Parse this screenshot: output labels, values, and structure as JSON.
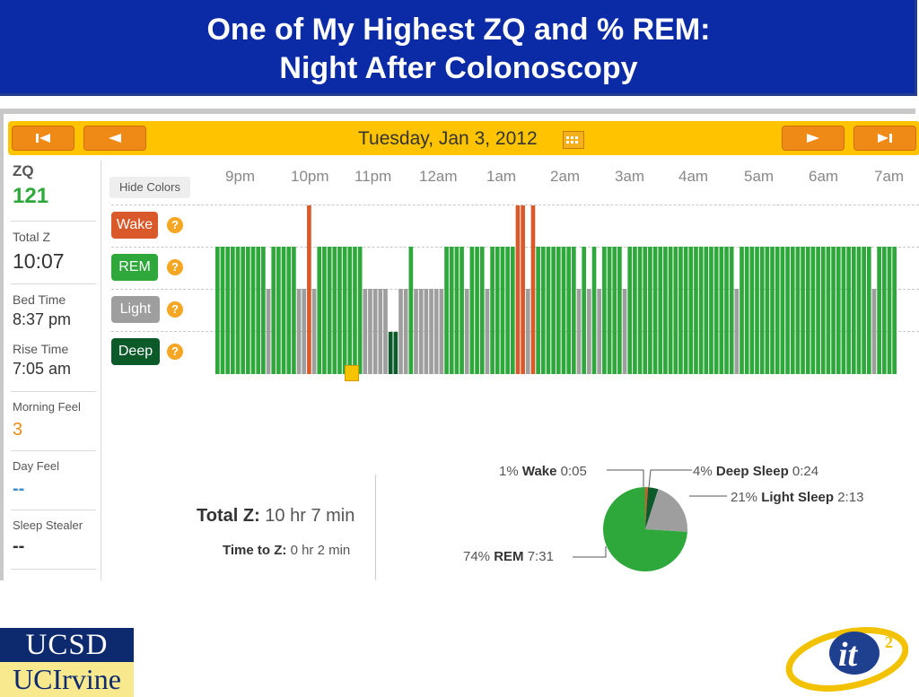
{
  "slide": {
    "title_line1": "One of My Highest ZQ and % REM:",
    "title_line2": "Night After Colonoscopy"
  },
  "nav": {
    "date": "Tuesday, Jan 3, 2012",
    "buttons": [
      "first",
      "prev",
      "next",
      "last"
    ]
  },
  "sidebar": {
    "items": [
      {
        "label": "ZQ",
        "value": "121"
      },
      {
        "label": "Total Z",
        "value": "10:07"
      },
      {
        "label": "Bed Time",
        "value": "8:37 pm"
      },
      {
        "label": "Rise Time",
        "value": "7:05 am"
      },
      {
        "label": "Morning Feel",
        "value": "3"
      },
      {
        "label": "Day Feel",
        "value": "--"
      },
      {
        "label": "Sleep Stealer",
        "value": "--"
      }
    ]
  },
  "graph": {
    "hide_colors_label": "Hide Colors",
    "hours": [
      "9pm",
      "10pm",
      "11pm",
      "12am",
      "1am",
      "2am",
      "3am",
      "4am",
      "5am",
      "6am",
      "7am"
    ],
    "legend": [
      {
        "label": "Wake",
        "color": "#d9592b"
      },
      {
        "label": "REM",
        "color": "#2ea83a"
      },
      {
        "label": "Light",
        "color": "#9e9e9e"
      },
      {
        "label": "Deep",
        "color": "#0c5a2a"
      }
    ]
  },
  "summary": {
    "total_label": "Total Z:",
    "total_value": "10 hr 7 min",
    "ttz_label": "Time to Z:",
    "ttz_value": "0 hr 2 min"
  },
  "pie": {
    "slices": [
      {
        "pct": "1%",
        "name": "Wake",
        "time": "0:05",
        "value": 1,
        "color": "#d9592b"
      },
      {
        "pct": "4%",
        "name": "Deep Sleep",
        "time": "0:24",
        "value": 4,
        "color": "#0c5a2a"
      },
      {
        "pct": "21%",
        "name": "Light Sleep",
        "time": "2:13",
        "value": 21,
        "color": "#9e9e9e"
      },
      {
        "pct": "74%",
        "name": "REM",
        "time": "7:31",
        "value": 74,
        "color": "#2ea83a"
      }
    ]
  },
  "logos": {
    "ucsd": "UCSD",
    "uci": "UCIrvine",
    "it2": "it",
    "it2_sup": "2"
  }
}
